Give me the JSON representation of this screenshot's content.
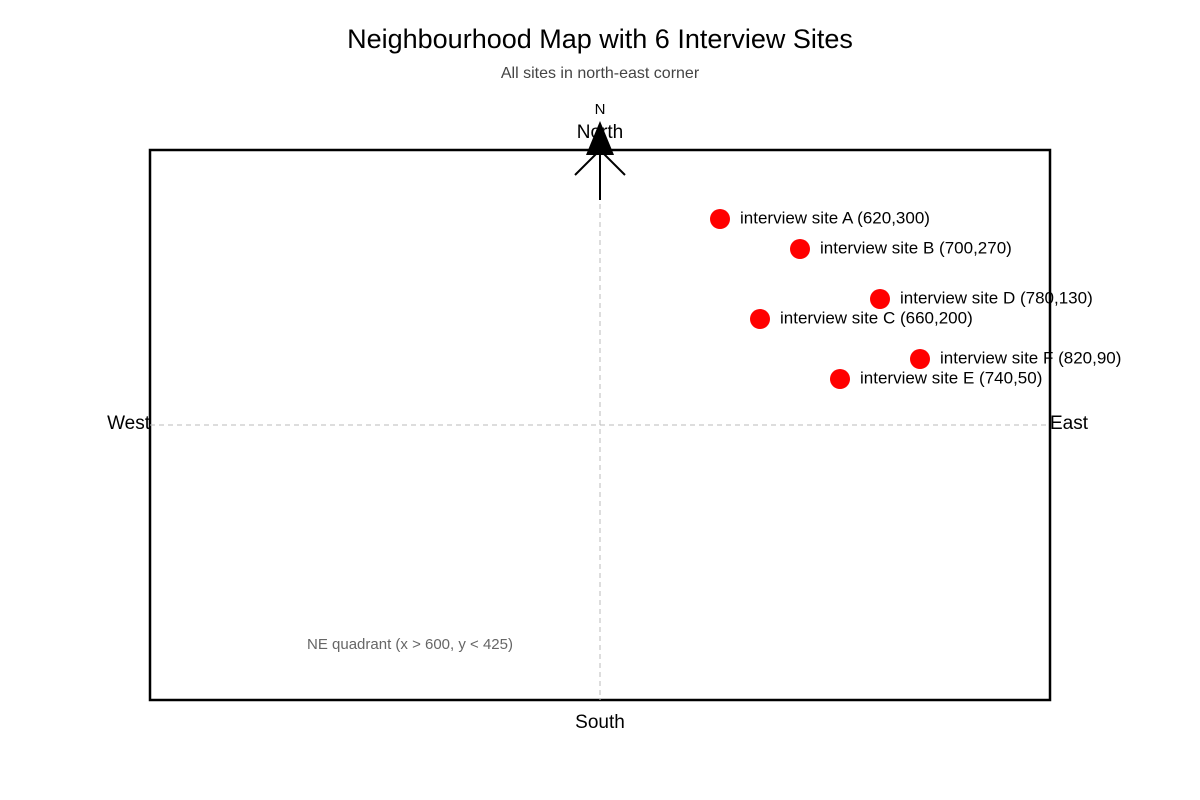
{
  "header": {
    "title": "Neighbourhood Map with 6 Interview Sites",
    "subtitle": "All sites in north-east corner"
  },
  "compass": {
    "symbol": "N"
  },
  "directions": {
    "north": "North",
    "south": "South",
    "east": "East",
    "west": "West"
  },
  "sites": [
    {
      "label": "interview site A (620,300)"
    },
    {
      "label": "interview site B (700,270)"
    },
    {
      "label": "interview site D (780,130)"
    },
    {
      "label": "interview site C (660,200)"
    },
    {
      "label": "interview site F (820,90)"
    },
    {
      "label": "interview site E (740,50)"
    }
  ],
  "note": "NE quadrant (x > 600, y < 425)"
}
